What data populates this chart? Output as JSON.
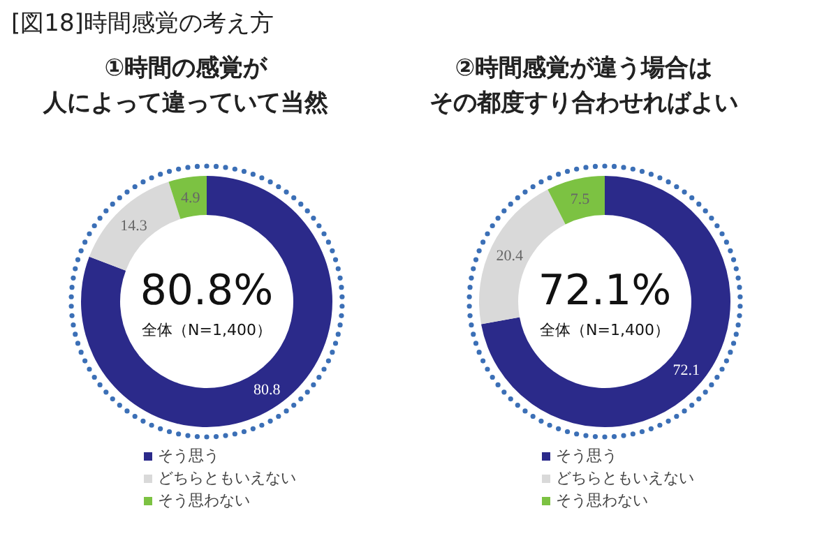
{
  "chart_data": [
    {
      "type": "donut",
      "title": "①時間の感覚が",
      "subtitle": "人によって違っていて当然",
      "categories": [
        "そう思う",
        "どちらともいえない",
        "そう思わない"
      ],
      "values": [
        80.8,
        14.3,
        4.9
      ],
      "colors": [
        "#2b2a8a",
        "#d9d9d9",
        "#7cc242"
      ],
      "data_labels": true,
      "legend": "bottom",
      "annotations": [
        "80.8%",
        "全体（N=1,400）",
        "[図18]時間感覚の考え方"
      ]
    },
    {
      "type": "donut",
      "title": "②時間感覚が違う場合は",
      "subtitle": "その都度すり合わせればよい",
      "categories": [
        "そう思う",
        "どちらともいえない",
        "そう思わない"
      ],
      "values": [
        72.1,
        20.4,
        7.5
      ],
      "colors": [
        "#2b2a8a",
        "#d9d9d9",
        "#7cc242"
      ],
      "data_labels": true,
      "legend": "bottom",
      "annotations": [
        "72.1%",
        "全体（N=1,400）"
      ]
    }
  ]
}
